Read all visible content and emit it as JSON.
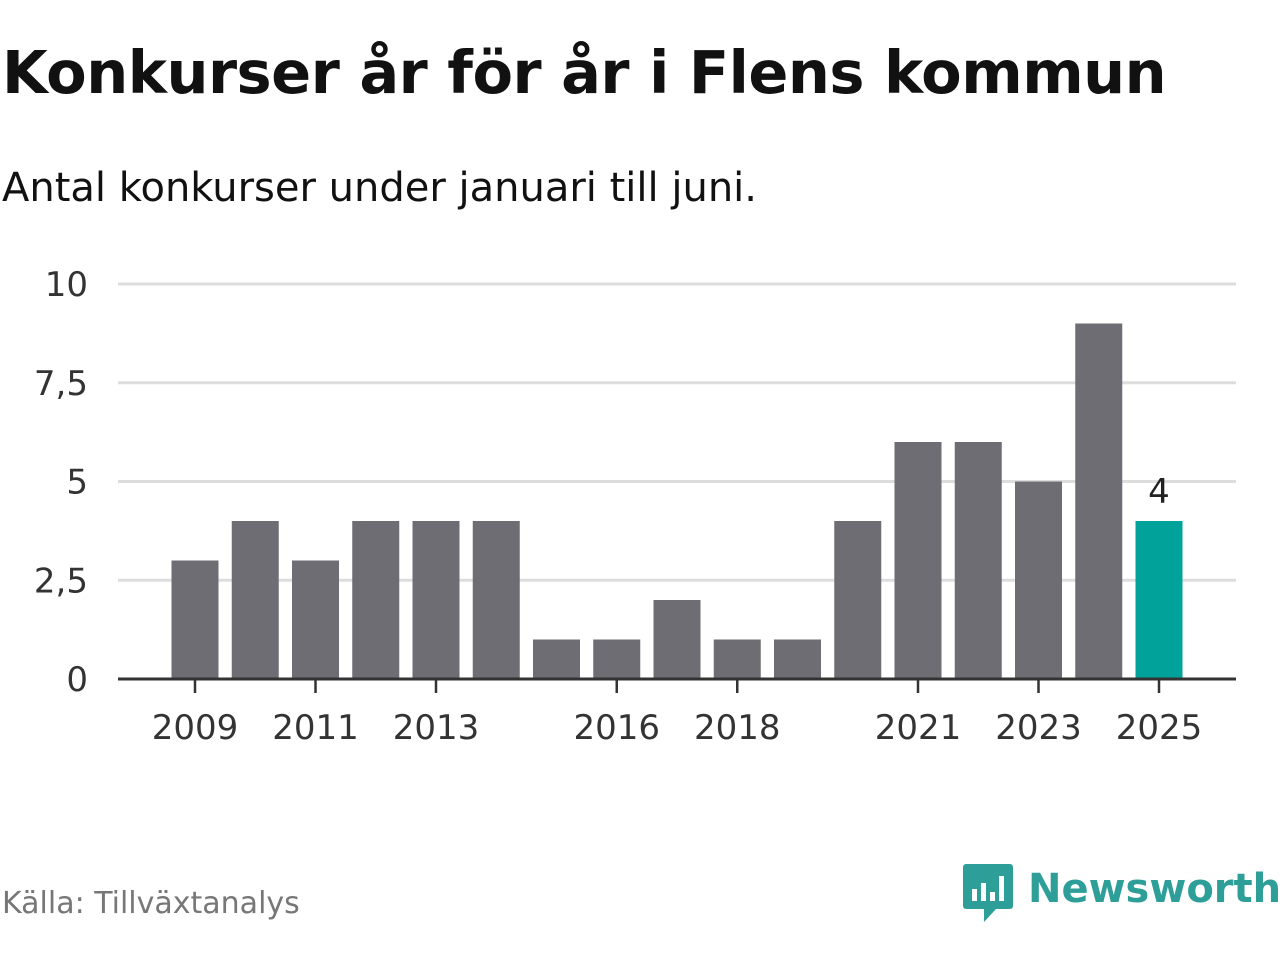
{
  "header": {
    "title": "Konkurser år för år i Flens kommun",
    "subtitle": "Antal konkurser under januari till juni."
  },
  "footer": {
    "source": "Källa: Tillväxtanalys",
    "brand": "Newsworthy",
    "brand_icon": "newsworthy-logo-icon",
    "brand_color": "#2e9e98"
  },
  "chart_data": {
    "type": "bar",
    "categories": [
      "2009",
      "2010",
      "2011",
      "2012",
      "2013",
      "2014",
      "2015",
      "2016",
      "2017",
      "2018",
      "2019",
      "2020",
      "2021",
      "2022",
      "2023",
      "2024",
      "2025"
    ],
    "values": [
      3,
      4,
      3,
      4,
      4,
      4,
      1,
      1,
      2,
      1,
      1,
      4,
      6,
      6,
      5,
      9,
      4
    ],
    "ylim": [
      0,
      10
    ],
    "yticks": [
      0,
      2.5,
      5,
      7.5,
      10
    ],
    "ytick_labels": [
      "0",
      "2,5",
      "5",
      "7,5",
      "10"
    ],
    "xtick_labels": [
      "2009",
      "2011",
      "2013",
      "2016",
      "2018",
      "2021",
      "2023",
      "2025"
    ],
    "grid": true,
    "bar_color": "#6e6d73",
    "highlight_color": "#00a29a",
    "highlight_category": "2025",
    "data_labels": [
      {
        "category": "2025",
        "text": "4"
      }
    ]
  }
}
